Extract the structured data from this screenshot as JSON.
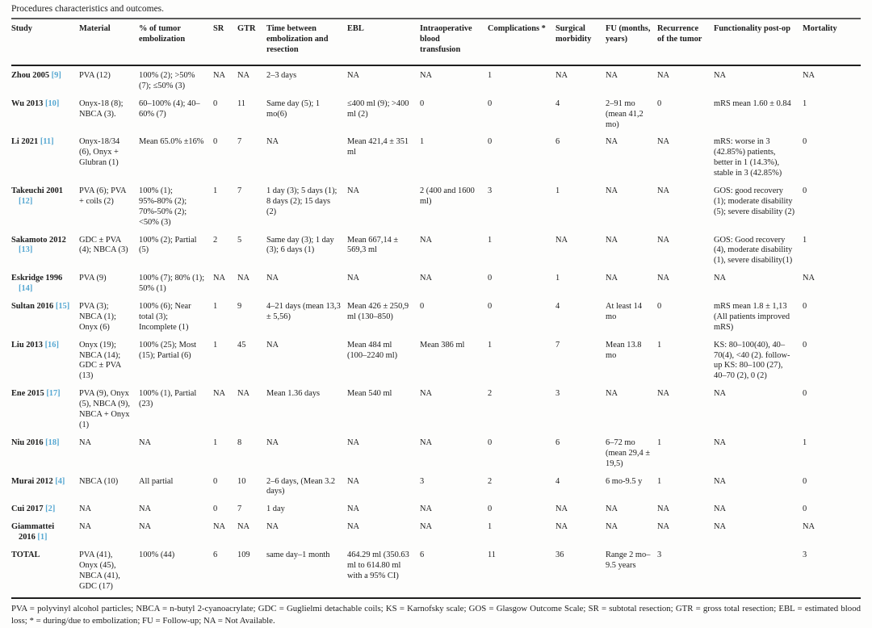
{
  "page": {
    "title": "Procedures characteristics and outcomes."
  },
  "table": {
    "columns": [
      "Study",
      "Material",
      "% of tumor embolization",
      "SR",
      "GTR",
      "Time between embolization and resection",
      "EBL",
      "Intraoperative blood transfusion",
      "Complications *",
      "Surgical morbidity",
      "FU (months, years)",
      "Recurrence of the tumor",
      "Functionality post-op",
      "Mortality"
    ],
    "rows": [
      {
        "study": "Zhou 2005",
        "ref": "[9]",
        "cells": [
          "PVA (12)",
          "100% (2); >50% (7); ≤50% (3)",
          "NA",
          "NA",
          "2–3 days",
          "NA",
          "NA",
          "1",
          "NA",
          "NA",
          "NA",
          "NA",
          "NA"
        ]
      },
      {
        "study": "Wu 2013",
        "ref": "[10]",
        "cells": [
          "Onyx-18 (8); NBCA (3).",
          "60–100% (4); 40–60% (7)",
          "0",
          "11",
          "Same day (5); 1 mo(6)",
          "≤400 ml (9); >400 ml (2)",
          "0",
          "0",
          "4",
          "2–91 mo (mean 41,2 mo)",
          "0",
          "mRS mean 1.60 ± 0.84",
          "1"
        ]
      },
      {
        "study": "Li 2021",
        "ref": "[11]",
        "cells": [
          "Onyx-18/34 (6), Onyx + Glubran (1)",
          "Mean 65.0% ±16%",
          "0",
          "7",
          "NA",
          "Mean 421,4 ± 351 ml",
          "1",
          "0",
          "6",
          "NA",
          "NA",
          "mRS: worse in 3 (42.85%) patients, better in 1 (14.3%), stable in 3 (42.85%)",
          "0"
        ]
      },
      {
        "study": "Takeuchi 2001",
        "ref": "[12]",
        "cells": [
          "PVA (6); PVA + coils (2)",
          "100% (1); 95%-80% (2); 70%-50% (2); <50% (3)",
          "1",
          "7",
          "1 day (3); 5 days (1); 8 days (2); 15 days (2)",
          "NA",
          "2 (400 and 1600 ml)",
          "3",
          "1",
          "NA",
          "NA",
          "GOS: good recovery (1); moderate disability (5); severe disability (2)",
          "0"
        ]
      },
      {
        "study": "Sakamoto 2012",
        "ref": "[13]",
        "cells": [
          "GDC ± PVA (4); NBCA (3)",
          "100% (2); Partial (5)",
          "2",
          "5",
          "Same day (3); 1 day (3); 6 days (1)",
          "Mean 667,14 ± 569,3 ml",
          "NA",
          "1",
          "NA",
          "NA",
          "NA",
          "GOS: Good recovery (4), moderate disability (1), severe disability(1)",
          "1"
        ]
      },
      {
        "study": "Eskridge 1996",
        "ref": "[14]",
        "cells": [
          "PVA (9)",
          "100% (7); 80% (1); 50% (1)",
          "NA",
          "NA",
          "NA",
          "NA",
          "NA",
          "0",
          "1",
          "NA",
          "NA",
          "NA",
          "NA"
        ]
      },
      {
        "study": "Sultan 2016",
        "ref": "[15]",
        "cells": [
          "PVA (3); NBCA (1); Onyx (6)",
          "100% (6); Near total (3); Incomplete (1)",
          "1",
          "9",
          "4–21 days (mean 13,3 ± 5,56)",
          "Mean 426 ± 250,9 ml (130–850)",
          "0",
          "0",
          "4",
          "At least 14 mo",
          "0",
          "mRS mean 1.8 ± 1,13 (All patients improved mRS)",
          "0"
        ]
      },
      {
        "study": "Liu 2013",
        "ref": "[16]",
        "cells": [
          "Onyx (19); NBCA (14); GDC ± PVA (13)",
          "100% (25); Most (15); Partial (6)",
          "1",
          "45",
          "NA",
          "Mean 484 ml (100–2240 ml)",
          "Mean 386 ml",
          "1",
          "7",
          "Mean 13.8 mo",
          "1",
          "KS: 80–100(40), 40–70(4), <40 (2). follow-up KS: 80–100 (27), 40–70 (2), 0 (2)",
          "0"
        ]
      },
      {
        "study": "Ene 2015",
        "ref": "[17]",
        "cells": [
          "PVA (9), Onyx (5), NBCA (9), NBCA + Onyx (1)",
          "100% (1), Partial (23)",
          "NA",
          "NA",
          "Mean 1.36 days",
          "Mean 540 ml",
          "NA",
          "2",
          "3",
          "NA",
          "NA",
          "NA",
          "0"
        ]
      },
      {
        "study": "Niu 2016",
        "ref": "[18]",
        "cells": [
          "NA",
          "NA",
          "1",
          "8",
          "NA",
          "NA",
          "NA",
          "0",
          "6",
          "6–72 mo (mean 29,4 ± 19,5)",
          "1",
          "NA",
          "1"
        ]
      },
      {
        "study": "Murai 2012",
        "ref": "[4]",
        "cells": [
          "NBCA (10)",
          "All partial",
          "0",
          "10",
          "2–6 days, (Mean 3.2 days)",
          "NA",
          "3",
          "2",
          "4",
          "6 mo-9.5 y",
          "1",
          "NA",
          "0"
        ]
      },
      {
        "study": "Cui 2017",
        "ref": "[2]",
        "cells": [
          "NA",
          "NA",
          "0",
          "7",
          "1 day",
          "NA",
          "NA",
          "0",
          "NA",
          "NA",
          "NA",
          "NA",
          "0"
        ]
      },
      {
        "study": "Giammattei 2016",
        "ref": "[1]",
        "cells": [
          "NA",
          "NA",
          "NA",
          "NA",
          "NA",
          "NA",
          "NA",
          "1",
          "NA",
          "NA",
          "NA",
          "NA",
          "NA"
        ]
      },
      {
        "study": "TOTAL",
        "ref": "",
        "cells": [
          "PVA (41), Onyx (45), NBCA (41), GDC (17)",
          "100% (44)",
          "6",
          "109",
          "same day–1 month",
          "464.29 ml (350.63 ml to 614.80 ml with a 95% CI)",
          "6",
          "11",
          "36",
          "Range 2 mo–9.5 years",
          "3",
          "",
          "3"
        ]
      }
    ]
  },
  "footnote": "PVA = polyvinyl alcohol particles; NBCA = n-butyl 2-cyanoacrylate; GDC = Guglielmi detachable coils; KS = Karnofsky scale; GOS = Glasgow Outcome Scale; SR = subtotal resection; GTR = gross total resection; EBL = estimated blood loss; * = during/due to embolization; FU = Follow-up; NA = Not Available.",
  "colors": {
    "citation_link": "#57a8d2",
    "rule_dark": "#1f1f1f",
    "rule_gray": "#5a5a5a",
    "text": "#1c1c1c"
  }
}
